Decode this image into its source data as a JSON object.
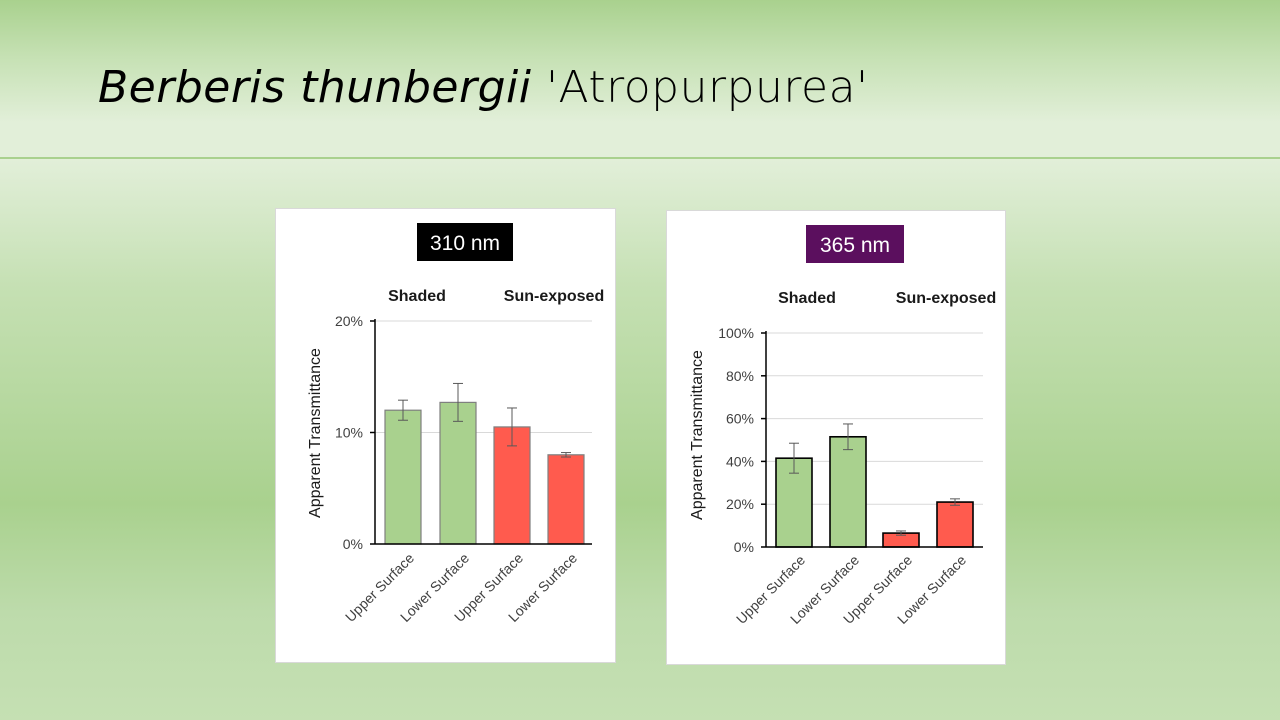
{
  "slide": {
    "title_italic": "Berberis thunbergii",
    "title_rest": " 'Atropurpurea'"
  },
  "colors": {
    "shaded": "#a9d18e",
    "sun_exposed": "#ff5b4e",
    "badge_310": "#000000",
    "badge_365": "#5b0f5e"
  },
  "chart_data": [
    {
      "type": "bar",
      "title": "310 nm",
      "group_labels": [
        "Shaded",
        "Sun-exposed"
      ],
      "categories": [
        "Upper Surface",
        "Lower Surface",
        "Upper Surface",
        "Lower Surface"
      ],
      "values": [
        12.0,
        12.7,
        10.5,
        8.0
      ],
      "errors": [
        0.9,
        1.7,
        1.7,
        0.2
      ],
      "groups": [
        "Shaded",
        "Shaded",
        "Sun-exposed",
        "Sun-exposed"
      ],
      "ylabel": "Apparent Transmittance",
      "ylim": [
        0,
        20
      ],
      "yticks": [
        0,
        10,
        20
      ],
      "ytick_labels": [
        "0%",
        "10%",
        "20%"
      ],
      "grid": true
    },
    {
      "type": "bar",
      "title": "365 nm",
      "group_labels": [
        "Shaded",
        "Sun-exposed"
      ],
      "categories": [
        "Upper Surface",
        "Lower Surface",
        "Upper Surface",
        "Lower Surface"
      ],
      "values": [
        41.5,
        51.5,
        6.5,
        21.0
      ],
      "errors": [
        7.0,
        6.0,
        1.0,
        1.5
      ],
      "groups": [
        "Shaded",
        "Shaded",
        "Sun-exposed",
        "Sun-exposed"
      ],
      "ylabel": "Apparent Transmittance",
      "ylim": [
        0,
        100
      ],
      "yticks": [
        0,
        20,
        40,
        60,
        80,
        100
      ],
      "ytick_labels": [
        "0%",
        "20%",
        "40%",
        "60%",
        "80%",
        "100%"
      ],
      "grid": true
    }
  ]
}
